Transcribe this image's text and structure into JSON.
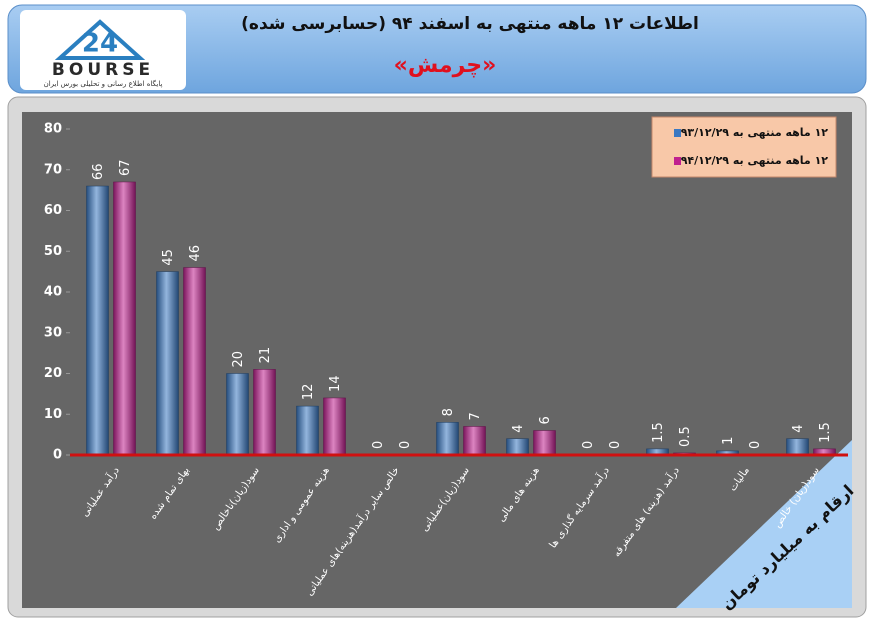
{
  "header": {
    "logo": {
      "number": "24",
      "name": "BOURSE",
      "tagline": "پایگاه اطلاع رسانی و تحلیلی بورس ایران"
    },
    "title": "اطلاعات ۱۲ ماهه منتهی به اسفند ۹۴ (حسابرسی شده)",
    "subtitle": "«چرمش»"
  },
  "chart_data": {
    "type": "bar",
    "categories": [
      "درآمد عملیاتی",
      "بهای تمام شده",
      "سود(زیان)ناخالص",
      "هزینه عمومی و اداری",
      "خالص سایر درآمد(هزینه)های عملیاتی",
      "سود(زیان)عملیاتی",
      "هزینه های مالی",
      "درآمد سرمایه گذاری ها",
      "درآمد (هزینه) های متفرقه",
      "مالیات",
      "سود(زیان) خالص"
    ],
    "series": [
      {
        "name": "۱۲ ماهه منتهی به ۹۳/۱۲/۲۹",
        "color": "#3a78c2",
        "values": [
          66,
          45,
          20,
          12,
          0,
          8,
          4,
          0,
          1.5,
          1,
          4
        ]
      },
      {
        "name": "۱۲ ماهه منتهی به ۹۴/۱۲/۲۹",
        "color": "#c0208f",
        "values": [
          67,
          46,
          21,
          14,
          0,
          7,
          6,
          0,
          0.5,
          0,
          1.5
        ]
      }
    ],
    "ylim": [
      0,
      80
    ],
    "yticks": [
      0,
      10,
      20,
      30,
      40,
      50,
      60,
      70,
      80
    ],
    "legend": "top-right",
    "annotation": "ارقام به میلیارد تومان"
  }
}
